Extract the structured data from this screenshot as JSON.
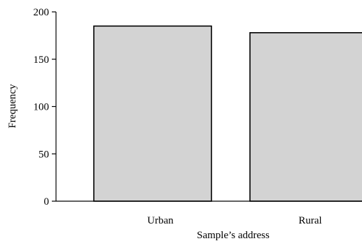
{
  "chart_data": {
    "type": "bar",
    "title": "",
    "xlabel": "Sample’s address",
    "ylabel": "Frequency",
    "categories": [
      "Urban",
      "Rural"
    ],
    "values": [
      185,
      178
    ],
    "ylim": [
      0,
      200
    ],
    "yticks": [
      "0",
      "50",
      "100",
      "150",
      "200"
    ],
    "grid": false,
    "bar_color": "#d3d3d3",
    "edge_color": "#000000"
  }
}
